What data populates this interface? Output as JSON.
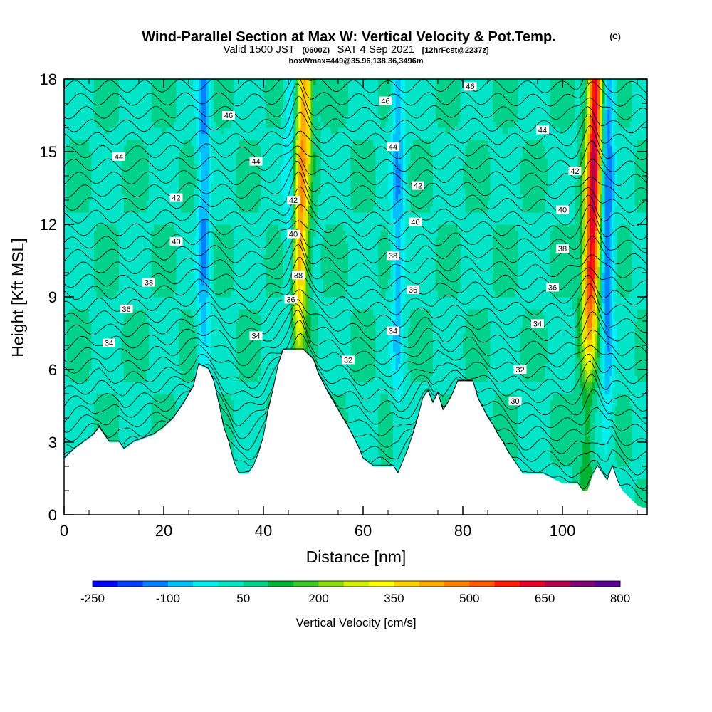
{
  "title": {
    "main": "Wind-Parallel Section at Max W: Vertical Velocity & Pot.Temp.",
    "copyright": "(C)",
    "valid_prefix": "Valid 1500 JST",
    "valid_zulu": "(0600Z)",
    "valid_date": "SAT 4 Sep 2021",
    "forecast": "[12hrFcst@2237z]",
    "box": "boxWmax=449@35.96,138.36,3496m"
  },
  "colors": {
    "terrain": "#ffffff",
    "contour": "#000000",
    "colorbar": [
      "#0000ff",
      "#0040ff",
      "#0080ff",
      "#00bfff",
      "#00f0f0",
      "#00e5c8",
      "#00d28c",
      "#00b432",
      "#3cc828",
      "#8cdc14",
      "#d2f000",
      "#ffff00",
      "#ffd200",
      "#ffaa00",
      "#ff8200",
      "#ff5a00",
      "#ff1e00",
      "#e60028",
      "#b40050",
      "#820078",
      "#5a0096"
    ]
  },
  "chart_data": {
    "type": "heatmap",
    "description_units": "x in nm, y in Kft MSL, potential temperature contour labels in °C",
    "xlabel": "Distance [nm]",
    "ylabel": "Height [Kft MSL]",
    "xlim": [
      0,
      117
    ],
    "ylim": [
      0,
      18
    ],
    "xticks": [
      0,
      20,
      40,
      60,
      80,
      100
    ],
    "yticks": [
      0,
      3,
      6,
      9,
      12,
      15,
      18
    ],
    "colorbar": {
      "label": "Vertical Velocity [cm/s]",
      "levels": [
        -250,
        -200,
        -150,
        -100,
        -50,
        0,
        50,
        100,
        150,
        200,
        250,
        300,
        350,
        400,
        450,
        500,
        550,
        600,
        650,
        700,
        750,
        800,
        850
      ],
      "tick_labels": [
        "-250",
        "-100",
        "50",
        "200",
        "350",
        "500",
        "650",
        "800"
      ],
      "tick_values": [
        -250,
        -100,
        50,
        200,
        350,
        500,
        650,
        800
      ]
    },
    "terrain_profile": [
      [
        0,
        2.3
      ],
      [
        2,
        2.7
      ],
      [
        4,
        3.0
      ],
      [
        6,
        3.3
      ],
      [
        7,
        3.6
      ],
      [
        9,
        3.0
      ],
      [
        11,
        3.0
      ],
      [
        12,
        2.7
      ],
      [
        14,
        3.0
      ],
      [
        18,
        3.3
      ],
      [
        20,
        3.6
      ],
      [
        22,
        4.0
      ],
      [
        24,
        4.6
      ],
      [
        26,
        5.3
      ],
      [
        27,
        6.2
      ],
      [
        29,
        6.0
      ],
      [
        30,
        5.5
      ],
      [
        31,
        4.6
      ],
      [
        32,
        3.6
      ],
      [
        33,
        3.0
      ],
      [
        34,
        2.2
      ],
      [
        35,
        1.7
      ],
      [
        37,
        1.7
      ],
      [
        38,
        2.0
      ],
      [
        39,
        2.5
      ],
      [
        40,
        3.2
      ],
      [
        41,
        4.3
      ],
      [
        42,
        5.2
      ],
      [
        43,
        6.2
      ],
      [
        44,
        6.8
      ],
      [
        48,
        6.8
      ],
      [
        50,
        6.4
      ],
      [
        51,
        5.8
      ],
      [
        53,
        5.0
      ],
      [
        55,
        4.3
      ],
      [
        57,
        3.6
      ],
      [
        59,
        2.8
      ],
      [
        60,
        2.3
      ],
      [
        62,
        2.0
      ],
      [
        66,
        2.0
      ],
      [
        67,
        1.7
      ],
      [
        68,
        2.2
      ],
      [
        69,
        2.7
      ],
      [
        70,
        3.3
      ],
      [
        71,
        4.0
      ],
      [
        72,
        4.8
      ],
      [
        73,
        5.1
      ],
      [
        74,
        4.6
      ],
      [
        75,
        5.0
      ],
      [
        76,
        4.3
      ],
      [
        77,
        4.6
      ],
      [
        78,
        5.0
      ],
      [
        79,
        5.5
      ],
      [
        82,
        5.5
      ],
      [
        83,
        4.8
      ],
      [
        84,
        4.4
      ],
      [
        85,
        4.0
      ],
      [
        86,
        3.7
      ],
      [
        87,
        3.3
      ],
      [
        88,
        3.0
      ],
      [
        89,
        2.6
      ],
      [
        90,
        2.3
      ],
      [
        91,
        2.0
      ],
      [
        92,
        1.7
      ],
      [
        96,
        1.7
      ],
      [
        98,
        1.5
      ],
      [
        99,
        1.4
      ],
      [
        100,
        1.3
      ],
      [
        103,
        1.3
      ],
      [
        104,
        1.0
      ],
      [
        105,
        1.0
      ],
      [
        106,
        1.6
      ],
      [
        107,
        2.0
      ],
      [
        108,
        1.7
      ],
      [
        109,
        1.4
      ],
      [
        110,
        2.0
      ],
      [
        111,
        1.4
      ],
      [
        112,
        1.0
      ],
      [
        113,
        0.8
      ],
      [
        114,
        0.6
      ],
      [
        115,
        0.4
      ],
      [
        116,
        0.3
      ],
      [
        117,
        0.3
      ]
    ],
    "updraft_cores": [
      {
        "x": 47,
        "w": 450
      },
      {
        "x": 105.5,
        "w": 650
      }
    ],
    "downdraft_cores": [
      {
        "x": 28,
        "w": -150
      },
      {
        "x": 45.5,
        "w": -120
      },
      {
        "x": 67,
        "w": -130
      },
      {
        "x": 109,
        "w": -200
      }
    ],
    "theta_contour_labels": [
      {
        "text": "34",
        "x": 9,
        "y": 7.1
      },
      {
        "text": "36",
        "x": 12.5,
        "y": 8.5
      },
      {
        "text": "38",
        "x": 17,
        "y": 9.6
      },
      {
        "text": "40",
        "x": 22.5,
        "y": 11.3
      },
      {
        "text": "42",
        "x": 22.5,
        "y": 13.1
      },
      {
        "text": "44",
        "x": 11,
        "y": 14.8
      },
      {
        "text": "46",
        "x": 33,
        "y": 16.5
      },
      {
        "text": "44",
        "x": 38.5,
        "y": 14.6
      },
      {
        "text": "34",
        "x": 38.5,
        "y": 7.4
      },
      {
        "text": "42",
        "x": 46,
        "y": 13.0
      },
      {
        "text": "40",
        "x": 46,
        "y": 11.6
      },
      {
        "text": "38",
        "x": 47,
        "y": 9.9
      },
      {
        "text": "36",
        "x": 45.5,
        "y": 8.9
      },
      {
        "text": "32",
        "x": 57,
        "y": 6.4
      },
      {
        "text": "46",
        "x": 64.5,
        "y": 17.1
      },
      {
        "text": "44",
        "x": 66,
        "y": 15.2
      },
      {
        "text": "42",
        "x": 71,
        "y": 13.6
      },
      {
        "text": "40",
        "x": 70.5,
        "y": 12.1
      },
      {
        "text": "38",
        "x": 66,
        "y": 10.7
      },
      {
        "text": "36",
        "x": 70,
        "y": 9.3
      },
      {
        "text": "34",
        "x": 66,
        "y": 7.6
      },
      {
        "text": "46",
        "x": 81.5,
        "y": 17.7
      },
      {
        "text": "44",
        "x": 96,
        "y": 15.9
      },
      {
        "text": "42",
        "x": 102.5,
        "y": 14.2
      },
      {
        "text": "40",
        "x": 100,
        "y": 12.6
      },
      {
        "text": "38",
        "x": 100,
        "y": 11.0
      },
      {
        "text": "36",
        "x": 98,
        "y": 9.4
      },
      {
        "text": "34",
        "x": 95,
        "y": 7.9
      },
      {
        "text": "32",
        "x": 91.5,
        "y": 6.0
      },
      {
        "text": "30",
        "x": 90.5,
        "y": 4.7
      }
    ]
  }
}
